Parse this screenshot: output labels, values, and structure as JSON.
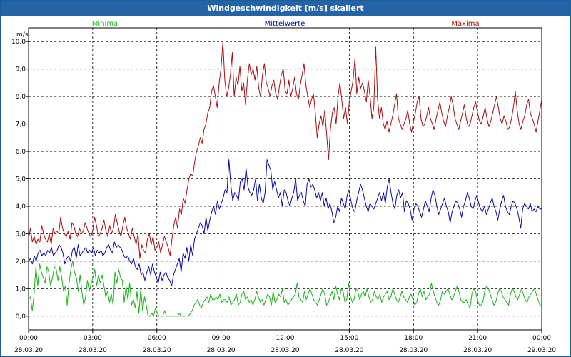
{
  "window": {
    "title": "Windgeschwindigkeit [m/s] skaliert"
  },
  "colors": {
    "minima": "#17b317",
    "mittelwerte": "#0a0aa8",
    "maxima": "#a80f0f",
    "grid": "#000000",
    "titlebar": "#2464a6"
  },
  "chart_data": {
    "type": "line",
    "ylabel": "m/s",
    "ylim": [
      -0.5,
      10.5
    ],
    "yticks": [
      "0,0",
      "1,0",
      "2,0",
      "3,0",
      "4,0",
      "5,0",
      "6,0",
      "7,0",
      "8,0",
      "9,0",
      "10,0"
    ],
    "xticks": [
      {
        "time": "00:00",
        "date": "28.03.20"
      },
      {
        "time": "03:00",
        "date": "28.03.20"
      },
      {
        "time": "06:00",
        "date": "28.03.20"
      },
      {
        "time": "09:00",
        "date": "28.03.20"
      },
      {
        "time": "12:00",
        "date": "28.03.20"
      },
      {
        "time": "15:00",
        "date": "28.03.20"
      },
      {
        "time": "18:00",
        "date": "28.03.20"
      },
      {
        "time": "21:00",
        "date": "28.03.20"
      },
      {
        "time": "00:00",
        "date": "29.03.20"
      }
    ],
    "grid": true,
    "x_start": "28.03.20 00:00",
    "x_end": "29.03.20 00:00",
    "x_step_minutes": 10,
    "series": [
      {
        "name": "Minima",
        "color": "#17b317",
        "values": [
          0.6,
          0.7,
          0.2,
          0.8,
          1.8,
          1.1,
          1.9,
          1.6,
          1.4,
          1.2,
          1.8,
          1.6,
          1.1,
          1.4,
          1.8,
          1.7,
          1.3,
          1.8,
          1.4,
          0.9,
          1.1,
          0.4,
          1.2,
          1.7,
          2.0,
          1.6,
          1.4,
          0.9,
          1.5,
          0.9,
          0.4,
          0.7,
          1.3,
          0.9,
          1.2,
          1.4,
          1.7,
          1.1,
          1.5,
          1.2,
          1.5,
          1.1,
          0.7,
          0.9,
          0.5,
          0.8,
          0.4,
          1.6,
          1.2,
          1.7,
          1.4,
          1.3,
          0.5,
          1.1,
          0.6,
          1.2,
          0.4,
          0.6,
          0.3,
          0.9,
          0.1,
          1.0,
          0.2,
          0.7,
          0.4,
          0.0,
          0.0,
          0.1,
          0.0,
          0.3,
          0.1,
          0.0,
          0.0,
          0.0,
          0.2,
          0.0,
          0.0,
          0.0,
          0.0,
          0.0,
          0.0,
          0.0,
          0.1,
          0.0,
          0.0,
          0.0,
          0.0,
          0.0,
          0.1,
          0.2,
          0.4,
          0.5,
          0.6,
          0.4,
          0.3,
          0.5,
          0.6,
          0.7,
          0.5,
          0.8,
          0.6,
          0.6,
          0.7,
          0.6,
          0.8,
          0.5,
          0.6,
          0.6,
          0.5,
          0.7,
          0.4,
          0.5,
          0.6,
          0.8,
          0.4,
          0.5,
          0.8,
          0.9,
          0.6,
          0.7,
          0.5,
          0.6,
          0.4,
          0.6,
          0.9,
          0.7,
          0.5,
          0.6,
          0.4,
          0.6,
          0.8,
          0.7,
          0.4,
          0.9,
          0.5,
          0.6,
          0.8,
          0.7,
          1.0,
          0.5,
          0.6,
          0.4,
          0.5,
          0.6,
          0.7,
          0.8,
          1.2,
          0.7,
          0.6,
          0.5,
          0.9,
          0.6,
          0.8,
          1.0,
          0.8,
          0.6,
          0.5,
          0.4,
          0.6,
          0.8,
          1.0,
          0.8,
          0.4,
          0.5,
          0.7,
          0.9,
          0.6,
          1.1,
          0.8,
          0.6,
          1.0,
          0.9,
          0.5,
          0.6,
          1.2,
          0.7,
          0.5,
          0.6,
          1.0,
          0.9,
          0.6,
          0.8,
          0.9,
          0.7,
          1.0,
          0.7,
          0.5,
          0.6,
          0.9,
          0.7,
          0.6,
          0.8,
          0.5,
          0.7,
          0.8,
          0.9,
          0.6,
          0.7,
          1.0,
          0.8,
          0.6,
          0.5,
          0.7,
          0.9,
          0.7,
          0.6,
          0.5,
          0.7,
          0.8,
          0.6,
          0.4,
          0.5,
          0.8,
          1.0,
          0.7,
          0.9,
          0.6,
          0.7,
          0.8,
          1.2,
          0.9,
          0.7,
          0.5,
          0.4,
          0.6,
          0.9,
          0.8,
          0.9,
          1.0,
          0.8,
          0.6,
          0.7,
          0.9,
          1.1,
          0.9,
          0.6,
          0.5,
          0.5,
          0.6,
          0.4,
          0.3,
          0.8,
          1.0,
          0.9,
          0.6,
          0.4,
          0.4,
          0.5,
          0.9,
          1.1,
          1.0,
          0.8,
          0.6,
          0.4,
          0.5,
          0.8,
          1.0,
          0.9,
          0.7,
          0.6,
          0.5,
          0.4,
          0.8,
          1.0,
          0.9,
          0.7,
          0.6,
          0.8,
          1.0,
          0.8,
          0.6,
          0.5,
          0.7,
          0.8,
          0.9,
          1.0,
          0.8,
          0.6,
          0.4,
          0.4
        ]
      },
      {
        "name": "Mittelwerte",
        "color": "#0a0aa8",
        "values": [
          2.0,
          2.1,
          1.9,
          2.2,
          2.0,
          2.3,
          2.4,
          2.2,
          2.3,
          2.2,
          2.4,
          2.3,
          2.5,
          2.2,
          2.3,
          2.4,
          2.6,
          2.5,
          2.3,
          1.9,
          2.1,
          2.2,
          2.0,
          2.4,
          2.5,
          2.1,
          2.6,
          2.2,
          2.3,
          2.4,
          2.5,
          2.3,
          2.4,
          2.3,
          2.5,
          2.2,
          2.4,
          2.3,
          2.4,
          2.2,
          2.3,
          2.5,
          2.6,
          2.4,
          2.3,
          2.7,
          2.5,
          2.6,
          2.5,
          2.4,
          2.2,
          2.1,
          2.2,
          2.0,
          1.9,
          2.1,
          1.8,
          1.7,
          1.9,
          1.5,
          1.6,
          1.3,
          1.6,
          1.8,
          1.5,
          1.9,
          1.6,
          1.4,
          1.2,
          1.6,
          1.3,
          1.5,
          1.6,
          1.4,
          1.3,
          1.1,
          1.5,
          1.7,
          1.9,
          2.1,
          1.6,
          2.3,
          2.1,
          2.5,
          2.0,
          2.6,
          2.2,
          2.8,
          3.0,
          3.2,
          3.4,
          3.3,
          3.0,
          3.6,
          3.1,
          3.5,
          3.8,
          4.0,
          3.7,
          4.2,
          3.9,
          4.1,
          4.3,
          4.6,
          4.5,
          5.7,
          4.8,
          4.2,
          4.5,
          4.4,
          4.2,
          4.9,
          5.0,
          4.6,
          5.4,
          4.7,
          4.5,
          4.4,
          4.6,
          5.0,
          4.2,
          4.8,
          4.3,
          4.1,
          4.5,
          5.7,
          5.5,
          5.3,
          4.6,
          4.9,
          4.6,
          4.3,
          4.5,
          4.0,
          4.6,
          4.5,
          4.2,
          4.0,
          4.3,
          4.5,
          5.0,
          4.2,
          4.4,
          4.5,
          4.2,
          4.0,
          4.8,
          5.0,
          4.7,
          4.8,
          4.6,
          4.3,
          4.5,
          4.2,
          4.5,
          4.0,
          4.3,
          3.9,
          4.1,
          3.8,
          3.4,
          3.6,
          4.0,
          3.8,
          4.3,
          4.1,
          3.9,
          4.4,
          4.6,
          4.2,
          3.9,
          3.8,
          4.2,
          4.5,
          4.8,
          4.6,
          4.3,
          4.0,
          3.8,
          4.1,
          4.0,
          3.9,
          4.1,
          4.3,
          4.5,
          4.2,
          4.5,
          4.1,
          4.7,
          5.0,
          4.5,
          4.1,
          3.9,
          4.4,
          4.6,
          4.3,
          4.5,
          3.8,
          4.2,
          4.1,
          3.9,
          3.5,
          3.9,
          4.1,
          4.0,
          3.8,
          3.6,
          3.9,
          4.2,
          4.0,
          3.8,
          4.3,
          4.6,
          4.4,
          4.0,
          3.7,
          3.9,
          4.1,
          4.3,
          4.0,
          3.8,
          3.4,
          3.8,
          4.0,
          4.2,
          4.1,
          3.9,
          3.6,
          4.0,
          4.2,
          4.5,
          4.3,
          4.0,
          3.9,
          4.2,
          4.4,
          4.1,
          3.9,
          3.8,
          4.0,
          3.7,
          3.9,
          4.1,
          4.3,
          4.0,
          3.8,
          3.5,
          3.9,
          4.2,
          4.4,
          4.0,
          3.8,
          3.7,
          4.0,
          4.2,
          4.1,
          3.9,
          3.6,
          3.2,
          3.9,
          4.1,
          4.0,
          3.9,
          4.1,
          3.8,
          3.9,
          3.8,
          4.0,
          3.9,
          3.9
        ]
      },
      {
        "name": "Maxima",
        "color": "#a80f0f",
        "values": [
          2.8,
          3.2,
          2.7,
          2.9,
          2.6,
          2.8,
          2.7,
          3.3,
          3.0,
          2.8,
          2.7,
          3.0,
          2.6,
          3.2,
          3.0,
          3.1,
          3.0,
          3.6,
          3.2,
          3.0,
          2.9,
          3.1,
          2.8,
          3.4,
          3.3,
          3.0,
          2.9,
          3.2,
          3.0,
          3.1,
          3.4,
          3.2,
          3.0,
          2.9,
          3.1,
          3.6,
          3.3,
          2.9,
          3.0,
          3.2,
          3.5,
          3.1,
          2.9,
          3.3,
          3.0,
          3.2,
          3.7,
          3.4,
          3.1,
          2.9,
          3.3,
          3.6,
          3.2,
          3.0,
          2.8,
          3.2,
          2.9,
          2.6,
          3.0,
          2.1,
          2.6,
          2.4,
          2.3,
          2.8,
          3.0,
          2.6,
          2.9,
          2.4,
          2.5,
          2.7,
          2.3,
          2.6,
          2.9,
          2.7,
          2.5,
          2.2,
          2.8,
          3.3,
          3.6,
          3.2,
          3.9,
          3.7,
          4.3,
          4.1,
          4.6,
          5.0,
          5.2,
          5.1,
          5.6,
          6.0,
          6.2,
          6.5,
          6.3,
          6.8,
          7.0,
          7.4,
          7.6,
          8.2,
          8.4,
          8.0,
          7.6,
          8.5,
          9.0,
          10.0,
          8.6,
          8.0,
          8.3,
          8.8,
          9.6,
          8.0,
          8.7,
          8.4,
          9.1,
          8.2,
          8.5,
          7.7,
          8.6,
          9.2,
          8.8,
          9.0,
          8.6,
          9.1,
          8.3,
          8.0,
          8.8,
          9.2,
          8.5,
          8.3,
          8.0,
          8.4,
          8.6,
          8.1,
          7.9,
          8.4,
          8.8,
          9.0,
          8.2,
          8.1,
          8.6,
          8.0,
          8.3,
          8.7,
          8.1,
          7.9,
          8.4,
          8.8,
          9.2,
          8.4,
          8.0,
          7.6,
          7.9,
          8.1,
          7.4,
          6.5,
          7.0,
          7.3,
          6.9,
          7.5,
          6.6,
          5.7,
          6.8,
          7.4,
          7.6,
          7.0,
          8.0,
          8.5,
          7.9,
          7.2,
          7.6,
          7.0,
          7.8,
          8.2,
          8.6,
          9.4,
          8.1,
          8.7,
          8.3,
          8.5,
          8.2,
          7.8,
          8.6,
          8.0,
          7.2,
          7.6,
          9.8,
          7.9,
          7.2,
          7.6,
          7.0,
          6.8,
          7.1,
          6.7,
          7.0,
          7.3,
          7.7,
          8.1,
          7.2,
          7.0,
          6.8,
          7.0,
          7.2,
          7.5,
          7.0,
          6.7,
          7.1,
          7.4,
          7.8,
          8.0,
          7.2,
          6.9,
          7.0,
          7.3,
          7.6,
          7.2,
          7.0,
          6.8,
          7.2,
          7.5,
          7.8,
          7.4,
          7.1,
          6.9,
          7.3,
          7.6,
          8.0,
          7.7,
          7.2,
          7.0,
          6.8,
          7.1,
          7.4,
          7.7,
          7.2,
          6.9,
          7.0,
          7.3,
          7.6,
          7.8,
          7.4,
          7.1,
          7.0,
          7.3,
          7.6,
          7.2,
          6.9,
          7.1,
          7.4,
          7.7,
          8.0,
          7.6,
          7.2,
          7.0,
          7.3,
          7.1,
          6.8,
          6.9,
          7.2,
          7.6,
          8.2,
          7.5,
          7.0,
          6.8,
          7.1,
          7.3,
          7.7,
          7.9,
          7.4,
          7.2,
          7.0,
          6.7,
          7.1,
          7.5,
          7.9
        ]
      }
    ]
  }
}
